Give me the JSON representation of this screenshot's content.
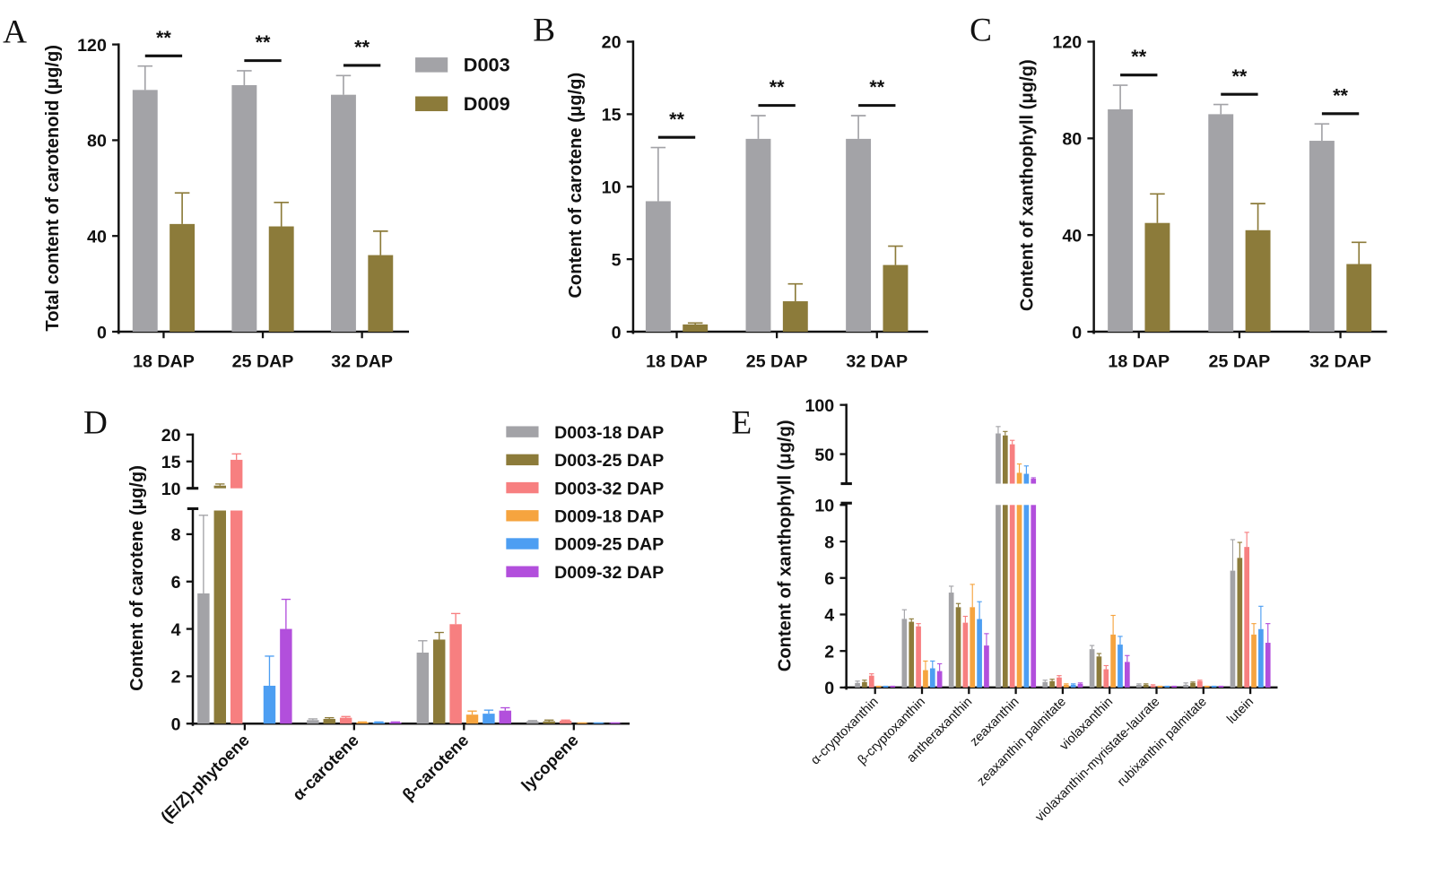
{
  "chart_data": [
    {
      "panel": "A",
      "type": "bar",
      "ylabel": "Total content of carotenoid (μg/g)",
      "categories": [
        "18 DAP",
        "25 DAP",
        "32 DAP"
      ],
      "y_segments": [
        {
          "range": [
            0,
            120
          ],
          "ticks": [
            0,
            40,
            80,
            120
          ]
        }
      ],
      "series": [
        {
          "name": "D003",
          "color": "#a3a3a7",
          "values": [
            101,
            103,
            99
          ],
          "errors": [
            10,
            6,
            8
          ]
        },
        {
          "name": "D009",
          "color": "#8c7b3a",
          "values": [
            45,
            44,
            32
          ],
          "errors": [
            13,
            10,
            10
          ]
        }
      ],
      "significance": [
        "**",
        "**",
        "**"
      ]
    },
    {
      "panel": "B",
      "type": "bar",
      "ylabel": "Content of carotene (μg/g)",
      "categories": [
        "18 DAP",
        "25 DAP",
        "32 DAP"
      ],
      "y_segments": [
        {
          "range": [
            0,
            20
          ],
          "ticks": [
            0,
            5,
            10,
            15,
            20
          ]
        }
      ],
      "series": [
        {
          "name": "D003",
          "color": "#a3a3a7",
          "values": [
            9.0,
            13.3,
            13.3
          ],
          "errors": [
            3.7,
            1.6,
            1.6
          ]
        },
        {
          "name": "D009",
          "color": "#8c7b3a",
          "values": [
            0.5,
            2.1,
            4.6
          ],
          "errors": [
            0.1,
            1.2,
            1.3
          ]
        }
      ],
      "significance": [
        "**",
        "**",
        "**"
      ]
    },
    {
      "panel": "C",
      "type": "bar",
      "ylabel": "Content of xanthophyll (μg/g)",
      "categories": [
        "18 DAP",
        "25 DAP",
        "32 DAP"
      ],
      "y_segments": [
        {
          "range": [
            0,
            120
          ],
          "ticks": [
            0,
            40,
            80,
            120
          ]
        }
      ],
      "series": [
        {
          "name": "D003",
          "color": "#a3a3a7",
          "values": [
            92,
            90,
            79
          ],
          "errors": [
            10,
            4,
            7
          ]
        },
        {
          "name": "D009",
          "color": "#8c7b3a",
          "values": [
            45,
            42,
            28
          ],
          "errors": [
            12,
            11,
            9
          ]
        }
      ],
      "significance": [
        "**",
        "**",
        "**"
      ]
    },
    {
      "panel": "D",
      "type": "bar",
      "ylabel": "Content of carotene (μg/g)",
      "categories": [
        "(E/Z)-phytoene",
        "α-carotene",
        "β-carotene",
        "lycopene"
      ],
      "y_segments": [
        {
          "range": [
            0,
            9
          ],
          "ticks": [
            0,
            2,
            4,
            6,
            8
          ]
        },
        {
          "range": [
            10,
            20
          ],
          "ticks": [
            10,
            15,
            20
          ]
        }
      ],
      "series": [
        {
          "name": "D003-18 DAP",
          "color": "#a3a3a7",
          "values": [
            5.5,
            0.15,
            3.0,
            0.1
          ],
          "errors": [
            3.3,
            0.05,
            0.5,
            0.03
          ]
        },
        {
          "name": "D003-25 DAP",
          "color": "#8c7b3a",
          "values": [
            10.5,
            0.2,
            3.55,
            0.1
          ],
          "errors": [
            0.3,
            0.05,
            0.3,
            0.05
          ]
        },
        {
          "name": "D003-32 DAP",
          "color": "#f77f80",
          "values": [
            15.3,
            0.25,
            4.2,
            0.12
          ],
          "errors": [
            1.1,
            0.05,
            0.45,
            0.03
          ]
        },
        {
          "name": "D009-18 DAP",
          "color": "#f6a43f",
          "values": [
            0,
            0.05,
            0.38,
            0.02
          ],
          "errors": [
            0,
            0.02,
            0.15,
            0.01
          ]
        },
        {
          "name": "D009-25 DAP",
          "color": "#4d9ef2",
          "values": [
            1.6,
            0.05,
            0.42,
            0.02
          ],
          "errors": [
            1.25,
            0.02,
            0.15,
            0.01
          ]
        },
        {
          "name": "D009-32 DAP",
          "color": "#b24fdc",
          "values": [
            4.0,
            0.05,
            0.55,
            0.02
          ],
          "errors": [
            1.25,
            0.02,
            0.12,
            0.01
          ]
        }
      ]
    },
    {
      "panel": "E",
      "type": "bar",
      "ylabel": "Content of xanthophyll (μg/g)",
      "categories": [
        "α-cryptoxanthin",
        "β-cryptoxanthin",
        "antheraxanthin",
        "zeaxanthin",
        "zeaxanthin palmitate",
        "violaxanthin",
        "violaxanthin-myristate-laurate",
        "rubixanthin palmitate",
        "lutein"
      ],
      "y_segments": [
        {
          "range": [
            0,
            10
          ],
          "ticks": [
            0,
            2,
            4,
            6,
            8,
            10
          ]
        },
        {
          "range": [
            20,
            100
          ],
          "ticks": [
            50,
            100
          ]
        }
      ],
      "series": [
        {
          "name": "D003-18 DAP",
          "color": "#a3a3a7",
          "values": [
            0.25,
            3.76,
            5.2,
            71,
            0.3,
            2.1,
            0.15,
            0.15,
            6.4
          ],
          "errors": [
            0.1,
            0.5,
            0.35,
            7,
            0.1,
            0.2,
            0.05,
            0.1,
            1.7
          ]
        },
        {
          "name": "D003-25 DAP",
          "color": "#8c7b3a",
          "values": [
            0.3,
            3.6,
            4.4,
            69,
            0.35,
            1.7,
            0.15,
            0.25,
            7.1
          ],
          "errors": [
            0.1,
            0.16,
            0.2,
            4,
            0.1,
            0.16,
            0.05,
            0.05,
            0.85
          ]
        },
        {
          "name": "D003-32 DAP",
          "color": "#f77f80",
          "values": [
            0.65,
            3.35,
            3.55,
            60,
            0.55,
            1.0,
            0.1,
            0.35,
            7.7
          ],
          "errors": [
            0.1,
            0.15,
            0.35,
            4,
            0.1,
            0.2,
            0.05,
            0.05,
            0.8
          ]
        },
        {
          "name": "D009-18 DAP",
          "color": "#f6a43f",
          "values": [
            0.05,
            0.95,
            4.4,
            31,
            0.15,
            2.9,
            0.05,
            0.05,
            2.9
          ],
          "errors": [
            0.02,
            0.5,
            1.25,
            9,
            0.05,
            1.05,
            0.02,
            0.02,
            0.6
          ]
        },
        {
          "name": "D009-25 DAP",
          "color": "#4d9ef2",
          "values": [
            0.05,
            1.05,
            3.75,
            30,
            0.15,
            2.35,
            0.05,
            0.05,
            3.2
          ],
          "errors": [
            0.02,
            0.4,
            0.95,
            8,
            0.05,
            0.45,
            0.02,
            0.02,
            1.25
          ]
        },
        {
          "name": "D009-32 DAP",
          "color": "#b24fdc",
          "values": [
            0.05,
            0.9,
            2.3,
            25,
            0.2,
            1.4,
            0.05,
            0.05,
            2.45
          ],
          "errors": [
            0.02,
            0.4,
            0.65,
            1,
            0.05,
            0.35,
            0.02,
            0.02,
            1.05
          ]
        }
      ]
    }
  ]
}
